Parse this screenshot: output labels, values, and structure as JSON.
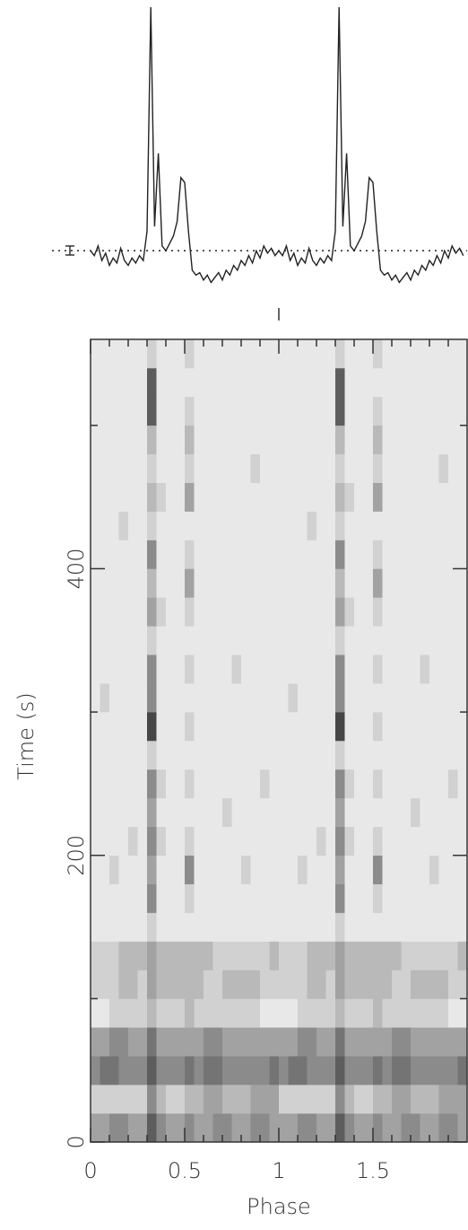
{
  "chart_data": [
    {
      "type": "line",
      "color": "#222222",
      "baseline": 0,
      "xlim": [
        0,
        2
      ],
      "ylim": [
        -15,
        100
      ],
      "x": [
        0,
        0.02,
        0.04,
        0.06,
        0.08,
        0.1,
        0.12,
        0.14,
        0.16,
        0.18,
        0.2,
        0.22,
        0.24,
        0.26,
        0.28,
        0.3,
        0.32,
        0.34,
        0.36,
        0.38,
        0.4,
        0.42,
        0.44,
        0.46,
        0.48,
        0.5,
        0.52,
        0.54,
        0.56,
        0.58,
        0.6,
        0.62,
        0.64,
        0.66,
        0.68,
        0.7,
        0.72,
        0.74,
        0.76,
        0.78,
        0.8,
        0.82,
        0.84,
        0.86,
        0.88,
        0.9,
        0.92,
        0.94,
        0.96,
        0.98,
        1,
        1.02,
        1.04,
        1.06,
        1.08,
        1.1,
        1.12,
        1.14,
        1.16,
        1.18,
        1.2,
        1.22,
        1.24,
        1.26,
        1.28,
        1.3,
        1.32,
        1.34,
        1.36,
        1.38,
        1.4,
        1.42,
        1.44,
        1.46,
        1.48,
        1.5,
        1.52,
        1.54,
        1.56,
        1.58,
        1.6,
        1.62,
        1.64,
        1.66,
        1.68,
        1.7,
        1.72,
        1.74,
        1.76,
        1.78,
        1.8,
        1.82,
        1.84,
        1.86,
        1.88,
        1.9,
        1.92,
        1.94,
        1.96,
        1.98
      ],
      "values": [
        0,
        -2,
        2,
        -4,
        -1,
        -6,
        -3,
        -5,
        1,
        -4,
        -6,
        -3,
        -5,
        -2,
        -4,
        8,
        100,
        10,
        40,
        2,
        0,
        3,
        6,
        12,
        30,
        28,
        8,
        -8,
        -10,
        -9,
        -12,
        -10,
        -13,
        -11,
        -9,
        -12,
        -8,
        -10,
        -6,
        -8,
        -4,
        -6,
        -2,
        -5,
        0,
        -3,
        2,
        -1,
        1,
        -2,
        0,
        -2,
        2,
        -4,
        -1,
        -6,
        -3,
        -5,
        1,
        -4,
        -6,
        -3,
        -5,
        -2,
        -4,
        8,
        100,
        10,
        40,
        2,
        0,
        3,
        6,
        12,
        30,
        28,
        8,
        -8,
        -10,
        -9,
        -12,
        -10,
        -13,
        -11,
        -9,
        -12,
        -8,
        -10,
        -6,
        -8,
        -4,
        -6,
        -2,
        -5,
        0,
        -3,
        2,
        -1,
        1,
        -2
      ]
    },
    {
      "type": "heatmap",
      "xlabel": "Phase",
      "ylabel": "Time (s)",
      "colormap": "Greys",
      "zlim": [
        0,
        11
      ],
      "xlim": [
        0,
        2
      ],
      "ylim": [
        0,
        560
      ],
      "xticks": [
        0,
        0.5,
        1,
        1.5
      ],
      "yticks": [
        0,
        200,
        400
      ],
      "x_bins": [
        0,
        0.05,
        0.1,
        0.15,
        0.2,
        0.25,
        0.3,
        0.35,
        0.4,
        0.45,
        0.5,
        0.55,
        0.6,
        0.65,
        0.7,
        0.75,
        0.8,
        0.85,
        0.9,
        0.95,
        1,
        1.05,
        1.1,
        1.15,
        1.2,
        1.25,
        1.3,
        1.35,
        1.4,
        1.45,
        1.5,
        1.55,
        1.6,
        1.65,
        1.7,
        1.75,
        1.8,
        1.85,
        1.9,
        1.95,
        2
      ],
      "y_bins": [
        0,
        20,
        40,
        60,
        80,
        100,
        120,
        140,
        160,
        180,
        200,
        220,
        240,
        260,
        280,
        300,
        320,
        340,
        360,
        380,
        400,
        420,
        440,
        460,
        480,
        500,
        520,
        540,
        560
      ],
      "z": [
        [
          4,
          4,
          5,
          5,
          4,
          4,
          7,
          5,
          4,
          4,
          5,
          4,
          4,
          5,
          5,
          4,
          4,
          5,
          5,
          4,
          4,
          4,
          5,
          5,
          4,
          4,
          7,
          5,
          4,
          4,
          5,
          4,
          4,
          5,
          5,
          4,
          4,
          5,
          5,
          4
        ],
        [
          2,
          2,
          2,
          2,
          2,
          2,
          5,
          3,
          2,
          2,
          3,
          3,
          4,
          4,
          3,
          3,
          3,
          4,
          4,
          4,
          2,
          2,
          2,
          2,
          2,
          2,
          5,
          3,
          2,
          2,
          3,
          3,
          4,
          4,
          3,
          3,
          3,
          4,
          4,
          4
        ],
        [
          5,
          6,
          6,
          5,
          5,
          5,
          7,
          5,
          5,
          5,
          6,
          5,
          6,
          6,
          5,
          5,
          5,
          5,
          5,
          6,
          5,
          6,
          6,
          5,
          5,
          5,
          7,
          5,
          5,
          5,
          6,
          5,
          6,
          6,
          5,
          5,
          5,
          5,
          5,
          6
        ],
        [
          4,
          4,
          5,
          5,
          4,
          4,
          6,
          4,
          4,
          4,
          4,
          4,
          5,
          5,
          4,
          4,
          4,
          4,
          4,
          4,
          4,
          4,
          5,
          5,
          4,
          4,
          6,
          4,
          4,
          4,
          4,
          4,
          5,
          5,
          4,
          4,
          4,
          4,
          4,
          4
        ],
        [
          1,
          1,
          2,
          2,
          2,
          2,
          3,
          2,
          2,
          2,
          3,
          2,
          2,
          2,
          2,
          2,
          2,
          2,
          1,
          1,
          1,
          1,
          2,
          2,
          2,
          2,
          3,
          2,
          2,
          2,
          3,
          2,
          2,
          2,
          2,
          2,
          2,
          2,
          1,
          1
        ],
        [
          2,
          2,
          2,
          3,
          3,
          2,
          4,
          3,
          3,
          3,
          3,
          3,
          2,
          2,
          3,
          3,
          3,
          3,
          2,
          2,
          2,
          2,
          2,
          3,
          3,
          2,
          4,
          3,
          3,
          3,
          3,
          3,
          2,
          2,
          3,
          3,
          3,
          3,
          2,
          2
        ],
        [
          2,
          2,
          2,
          3,
          3,
          3,
          4,
          3,
          3,
          3,
          3,
          3,
          3,
          2,
          2,
          2,
          2,
          2,
          2,
          3,
          2,
          2,
          2,
          3,
          3,
          3,
          4,
          3,
          3,
          3,
          3,
          3,
          3,
          2,
          2,
          2,
          2,
          2,
          2,
          3
        ],
        [
          1,
          1,
          1,
          1,
          1,
          1,
          2,
          1,
          1,
          1,
          1,
          1,
          1,
          1,
          1,
          1,
          1,
          1,
          1,
          1,
          1,
          1,
          1,
          1,
          1,
          1,
          2,
          1,
          1,
          1,
          1,
          1,
          1,
          1,
          1,
          1,
          1,
          1,
          1,
          1
        ],
        [
          1,
          1,
          1,
          1,
          1,
          1,
          5,
          1,
          1,
          1,
          2,
          1,
          1,
          1,
          1,
          1,
          1,
          1,
          1,
          1,
          1,
          1,
          1,
          1,
          1,
          1,
          5,
          1,
          1,
          1,
          2,
          1,
          1,
          1,
          1,
          1,
          1,
          1,
          1,
          1
        ],
        [
          1,
          1,
          2,
          1,
          1,
          1,
          4,
          1,
          1,
          1,
          5,
          1,
          1,
          1,
          1,
          1,
          2,
          1,
          1,
          1,
          1,
          1,
          2,
          1,
          1,
          1,
          4,
          1,
          1,
          1,
          5,
          1,
          1,
          1,
          1,
          1,
          2,
          1,
          1,
          1
        ],
        [
          1,
          1,
          1,
          1,
          2,
          1,
          5,
          2,
          1,
          1,
          2,
          1,
          1,
          1,
          1,
          1,
          1,
          1,
          1,
          1,
          1,
          1,
          1,
          1,
          2,
          1,
          5,
          2,
          1,
          1,
          2,
          1,
          1,
          1,
          1,
          1,
          1,
          1,
          1,
          1
        ],
        [
          1,
          1,
          1,
          1,
          1,
          1,
          4,
          1,
          1,
          1,
          1,
          1,
          1,
          1,
          2,
          1,
          1,
          1,
          1,
          1,
          1,
          1,
          1,
          1,
          1,
          1,
          4,
          1,
          1,
          1,
          1,
          1,
          1,
          1,
          2,
          1,
          1,
          1,
          1,
          1
        ],
        [
          1,
          1,
          1,
          1,
          1,
          1,
          5,
          2,
          1,
          1,
          2,
          1,
          1,
          1,
          1,
          1,
          1,
          1,
          2,
          1,
          1,
          1,
          1,
          1,
          1,
          1,
          5,
          2,
          1,
          1,
          2,
          1,
          1,
          1,
          1,
          1,
          1,
          1,
          2,
          1
        ],
        [
          1,
          1,
          1,
          1,
          1,
          1,
          2,
          1,
          1,
          1,
          1,
          1,
          1,
          1,
          1,
          1,
          1,
          1,
          1,
          1,
          1,
          1,
          1,
          1,
          1,
          1,
          2,
          1,
          1,
          1,
          1,
          1,
          1,
          1,
          1,
          1,
          1,
          1,
          1,
          1
        ],
        [
          1,
          1,
          1,
          1,
          1,
          1,
          8,
          1,
          1,
          1,
          2,
          1,
          1,
          1,
          1,
          1,
          1,
          1,
          1,
          1,
          1,
          1,
          1,
          1,
          1,
          1,
          8,
          1,
          1,
          1,
          2,
          1,
          1,
          1,
          1,
          1,
          1,
          1,
          1,
          1
        ],
        [
          1,
          2,
          1,
          1,
          1,
          1,
          5,
          1,
          1,
          1,
          1,
          1,
          1,
          1,
          1,
          1,
          1,
          1,
          1,
          1,
          1,
          2,
          1,
          1,
          1,
          1,
          5,
          1,
          1,
          1,
          1,
          1,
          1,
          1,
          1,
          1,
          1,
          1,
          1,
          1
        ],
        [
          1,
          1,
          1,
          1,
          1,
          1,
          5,
          1,
          1,
          1,
          2,
          1,
          1,
          1,
          1,
          2,
          1,
          1,
          1,
          1,
          1,
          1,
          1,
          1,
          1,
          1,
          5,
          1,
          1,
          1,
          2,
          1,
          1,
          1,
          1,
          2,
          1,
          1,
          1,
          1
        ],
        [
          1,
          1,
          1,
          1,
          1,
          1,
          2,
          1,
          1,
          1,
          1,
          1,
          1,
          1,
          1,
          1,
          1,
          1,
          1,
          1,
          1,
          1,
          1,
          1,
          1,
          1,
          2,
          1,
          1,
          1,
          1,
          1,
          1,
          1,
          1,
          1,
          1,
          1,
          1,
          1
        ],
        [
          1,
          1,
          1,
          1,
          1,
          1,
          4,
          2,
          1,
          1,
          2,
          1,
          1,
          1,
          1,
          1,
          1,
          1,
          1,
          1,
          1,
          1,
          1,
          1,
          1,
          1,
          4,
          2,
          1,
          1,
          2,
          1,
          1,
          1,
          1,
          1,
          1,
          1,
          1,
          1
        ],
        [
          1,
          1,
          1,
          1,
          1,
          1,
          3,
          1,
          1,
          1,
          4,
          1,
          1,
          1,
          1,
          1,
          1,
          1,
          1,
          1,
          1,
          1,
          1,
          1,
          1,
          1,
          3,
          1,
          1,
          1,
          4,
          1,
          1,
          1,
          1,
          1,
          1,
          1,
          1,
          1
        ],
        [
          1,
          1,
          1,
          1,
          1,
          1,
          5,
          1,
          1,
          1,
          2,
          1,
          1,
          1,
          1,
          1,
          1,
          1,
          1,
          1,
          1,
          1,
          1,
          1,
          1,
          1,
          5,
          1,
          1,
          1,
          2,
          1,
          1,
          1,
          1,
          1,
          1,
          1,
          1,
          1
        ],
        [
          1,
          1,
          1,
          2,
          1,
          1,
          2,
          1,
          1,
          1,
          1,
          1,
          1,
          1,
          1,
          1,
          1,
          1,
          1,
          1,
          1,
          1,
          1,
          2,
          1,
          1,
          2,
          1,
          1,
          1,
          1,
          1,
          1,
          1,
          1,
          1,
          1,
          1,
          1,
          1
        ],
        [
          1,
          1,
          1,
          1,
          1,
          1,
          3,
          2,
          1,
          1,
          4,
          1,
          1,
          1,
          1,
          1,
          1,
          1,
          1,
          1,
          1,
          1,
          1,
          1,
          1,
          1,
          3,
          2,
          1,
          1,
          4,
          1,
          1,
          1,
          1,
          1,
          1,
          1,
          1,
          1
        ],
        [
          1,
          1,
          1,
          1,
          1,
          1,
          2,
          1,
          1,
          1,
          2,
          1,
          1,
          1,
          1,
          1,
          1,
          2,
          1,
          1,
          1,
          1,
          1,
          1,
          1,
          1,
          2,
          1,
          1,
          1,
          2,
          1,
          1,
          1,
          1,
          1,
          1,
          2,
          1,
          1
        ],
        [
          1,
          1,
          1,
          1,
          1,
          1,
          3,
          1,
          1,
          1,
          3,
          1,
          1,
          1,
          1,
          1,
          1,
          1,
          1,
          1,
          1,
          1,
          1,
          1,
          1,
          1,
          3,
          1,
          1,
          1,
          3,
          1,
          1,
          1,
          1,
          1,
          1,
          1,
          1,
          1
        ],
        [
          1,
          1,
          1,
          1,
          1,
          1,
          7,
          1,
          1,
          1,
          2,
          1,
          1,
          1,
          1,
          1,
          1,
          1,
          1,
          1,
          1,
          1,
          1,
          1,
          1,
          1,
          7,
          1,
          1,
          1,
          2,
          1,
          1,
          1,
          1,
          1,
          1,
          1,
          1,
          1
        ],
        [
          1,
          1,
          1,
          1,
          1,
          1,
          7,
          1,
          1,
          1,
          1,
          1,
          1,
          1,
          1,
          1,
          1,
          1,
          1,
          1,
          1,
          1,
          1,
          1,
          1,
          1,
          7,
          1,
          1,
          1,
          1,
          1,
          1,
          1,
          1,
          1,
          1,
          1,
          1,
          1
        ],
        [
          1,
          1,
          1,
          1,
          1,
          1,
          2,
          1,
          1,
          1,
          2,
          1,
          1,
          1,
          1,
          1,
          1,
          1,
          1,
          1,
          1,
          1,
          1,
          1,
          1,
          1,
          2,
          1,
          1,
          1,
          2,
          1,
          1,
          1,
          1,
          1,
          1,
          1,
          1,
          1
        ]
      ]
    }
  ]
}
